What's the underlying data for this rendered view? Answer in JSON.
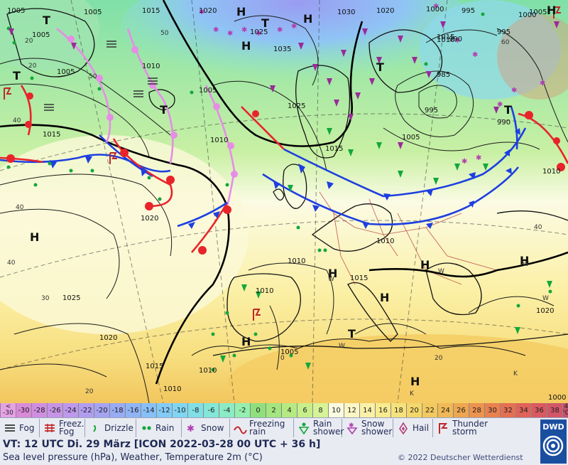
{
  "header": {
    "valid_time": "VT: 12 UTC Di.  29 März [ICON 2022-03-28  00 UTC + 36 h]",
    "description": "Sea level pressure (hPa), Weather, Temperature 2m (°C)",
    "copyright": "© 2022 Deutscher Wetterdienst",
    "logo": "DWD"
  },
  "colorbar": {
    "unit_top": "+40",
    "unit_bottom": "°C",
    "first_top": "<",
    "first_bottom": "-30",
    "cells": [
      {
        "label": "-30",
        "color": "#d98ad8"
      },
      {
        "label": "-28",
        "color": "#cf8ee0"
      },
      {
        "label": "-26",
        "color": "#c693e6"
      },
      {
        "label": "-24",
        "color": "#bd98ec"
      },
      {
        "label": "-22",
        "color": "#b19df0"
      },
      {
        "label": "-20",
        "color": "#a4a4f3"
      },
      {
        "label": "-18",
        "color": "#98abf5"
      },
      {
        "label": "-16",
        "color": "#8fb5f6"
      },
      {
        "label": "-14",
        "color": "#87c0f7"
      },
      {
        "label": "-12",
        "color": "#82cbf7"
      },
      {
        "label": "-10",
        "color": "#7fd6f2"
      },
      {
        "label": "-8",
        "color": "#80dfe6"
      },
      {
        "label": "-6",
        "color": "#84e6d6"
      },
      {
        "label": "-4",
        "color": "#8bebc4"
      },
      {
        "label": "-2",
        "color": "#95efb0"
      },
      {
        "label": "0",
        "color": "#8fe07c"
      },
      {
        "label": "2",
        "color": "#a3e57e"
      },
      {
        "label": "4",
        "color": "#b5ea83"
      },
      {
        "label": "6",
        "color": "#c6ef8b"
      },
      {
        "label": "8",
        "color": "#d7f397"
      },
      {
        "label": "10",
        "color": "#fbfbe1"
      },
      {
        "label": "12",
        "color": "#fbf6c4"
      },
      {
        "label": "14",
        "color": "#faf1a8"
      },
      {
        "label": "16",
        "color": "#f8eb90"
      },
      {
        "label": "18",
        "color": "#f6e27c"
      },
      {
        "label": "20",
        "color": "#f4d76a"
      },
      {
        "label": "22",
        "color": "#f2c95e"
      },
      {
        "label": "24",
        "color": "#f0b955"
      },
      {
        "label": "26",
        "color": "#eea650"
      },
      {
        "label": "28",
        "color": "#ec934e"
      },
      {
        "label": "30",
        "color": "#e9804e"
      },
      {
        "label": "32",
        "color": "#e56f52"
      },
      {
        "label": "34",
        "color": "#e06258"
      },
      {
        "label": "36",
        "color": "#d95a60"
      },
      {
        "label": "38",
        "color": "#d25668"
      }
    ]
  },
  "legend": [
    {
      "label": "Fog",
      "icon": "fog-icon"
    },
    {
      "label": "Freez.\nFog",
      "icon": "freezing-fog-icon"
    },
    {
      "label": "Drizzle",
      "icon": "drizzle-icon"
    },
    {
      "label": "Rain",
      "icon": "rain-icon"
    },
    {
      "label": "Snow",
      "icon": "snow-icon"
    },
    {
      "label": "Freezing\nrain",
      "icon": "freezing-rain-icon"
    },
    {
      "label": "Rain\nshower",
      "icon": "rain-shower-icon"
    },
    {
      "label": "Snow\nshower",
      "icon": "snow-shower-icon"
    },
    {
      "label": "Hail",
      "icon": "hail-icon"
    },
    {
      "label": "Thunder\nstorm",
      "icon": "thunderstorm-icon"
    }
  ],
  "map": {
    "colors": {
      "front_cold": "#1d3fe0",
      "front_warm": "#e8242a",
      "front_occluded": "#e68de6",
      "isobar": "#222222",
      "land_outline": "#111111",
      "border": "#b03030",
      "rain": "#12a83a",
      "snow": "#9a2a9a"
    },
    "pressure_labels": [
      "1005",
      "1005",
      "1005",
      "1015",
      "1020",
      "1025",
      "1035",
      "1030",
      "1020",
      "1000",
      "995",
      "1000",
      "1005",
      "995",
      "990",
      "985",
      "995",
      "1010",
      "1005",
      "1025",
      "1015",
      "1010",
      "1015",
      "1020",
      "1010",
      "1000",
      "1005",
      "1010",
      "990",
      "1010",
      "1010",
      "1015",
      "1025",
      "1020",
      "1015",
      "1010",
      "1005",
      "1010",
      "1020",
      "1015",
      "1010",
      "1005"
    ],
    "pressure_centers": [
      "H",
      "H",
      "H",
      "T",
      "T",
      "H",
      "T",
      "T",
      "H",
      "H",
      "T",
      "T",
      "H",
      "H",
      "H",
      "T",
      "H",
      "H"
    ],
    "small_labels": [
      "20",
      "40",
      "40",
      "30",
      "20",
      "40",
      "50",
      "60",
      "50",
      "40",
      "W",
      "W",
      "W",
      "W",
      "W",
      "K",
      "K",
      "0",
      "20",
      "20"
    ]
  }
}
